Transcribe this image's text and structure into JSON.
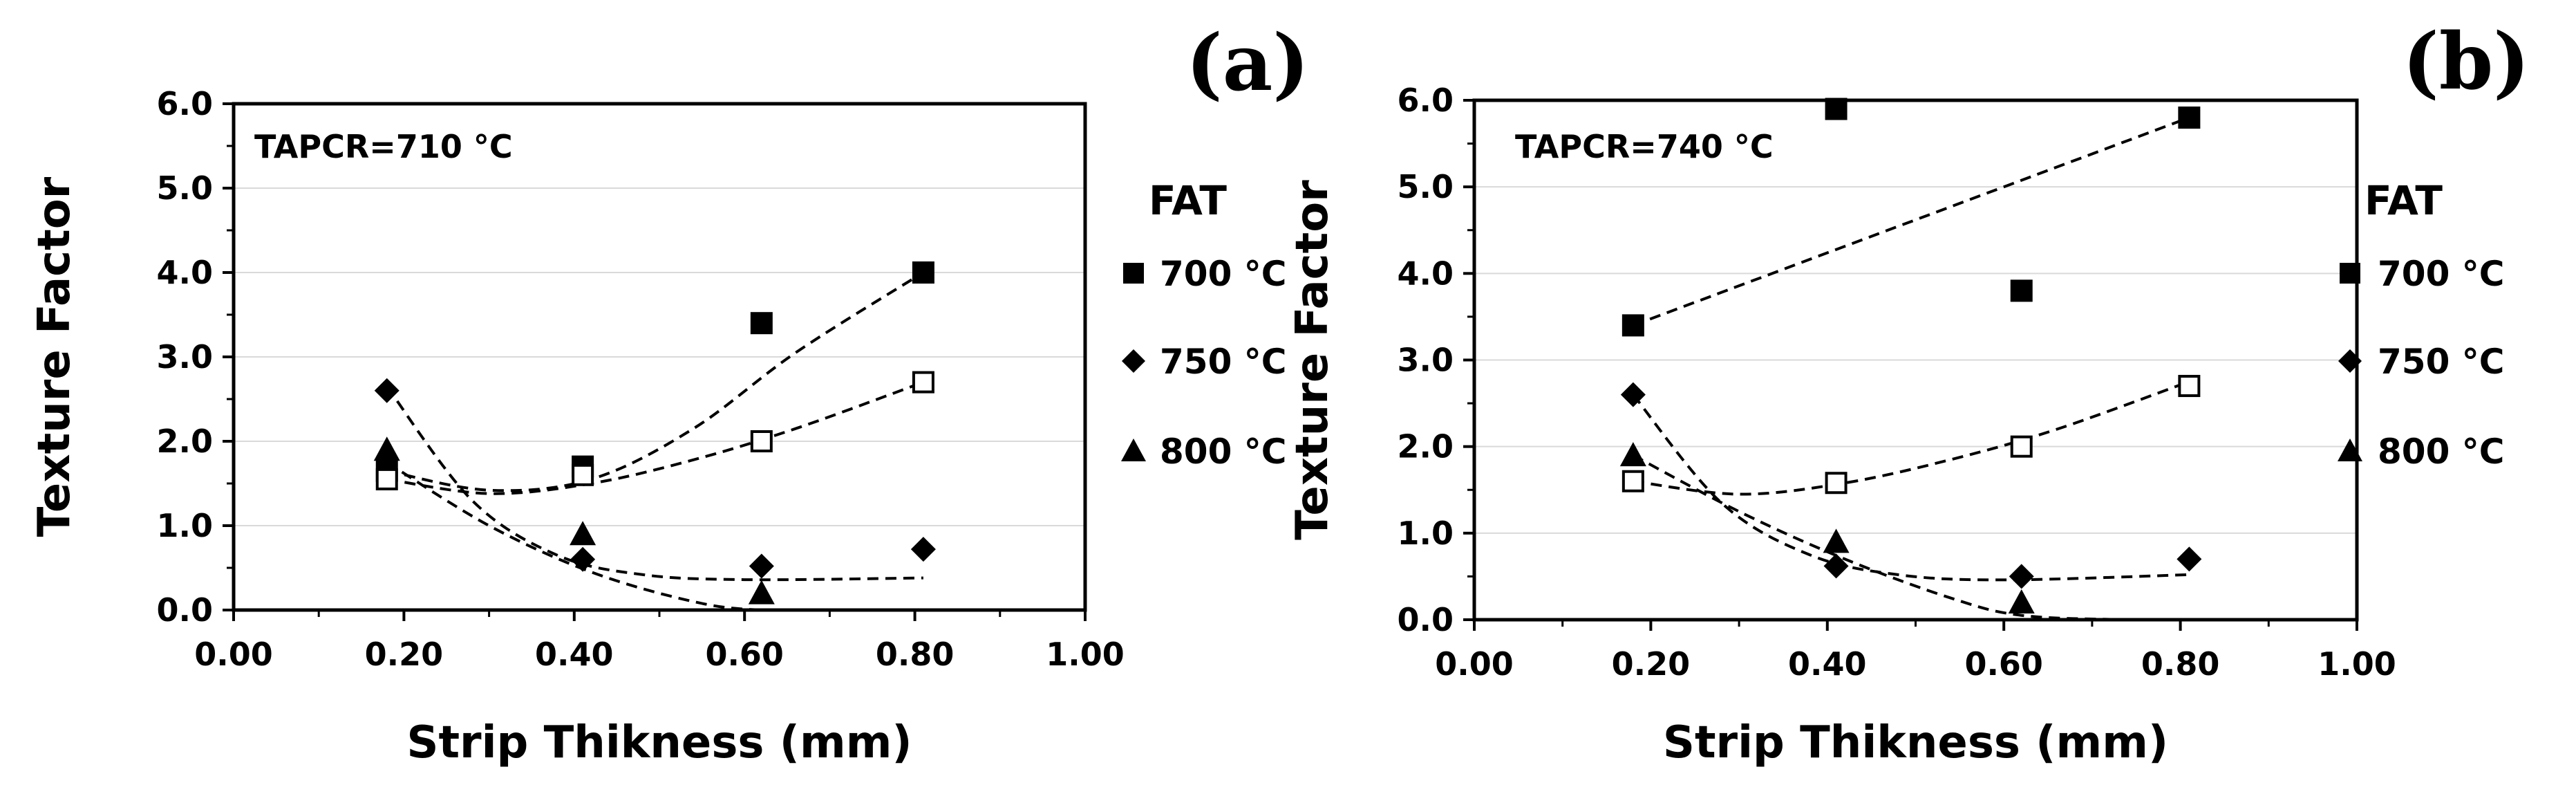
{
  "chart_data": [
    {
      "panel_label": "(a)",
      "type": "scatter",
      "annotation": "TAPCR=710 °C",
      "xlabel": "Strip Thikness (mm)",
      "ylabel": "Texture Factor",
      "xlim": [
        0.0,
        1.0
      ],
      "ylim": [
        0.0,
        6.0
      ],
      "x_ticks": [
        "0.00",
        "0.20",
        "0.40",
        "0.60",
        "0.80",
        "1.00"
      ],
      "y_ticks": [
        "0.0",
        "1.0",
        "2.0",
        "3.0",
        "4.0",
        "5.0",
        "6.0"
      ],
      "legend_title": "FAT",
      "legend": [
        "700 °C",
        "750 °C",
        "800 °C"
      ],
      "series": [
        {
          "name": "700 °C",
          "marker": "square",
          "x": [
            0.18,
            0.41,
            0.62,
            0.81
          ],
          "y": [
            1.65,
            1.7,
            3.4,
            4.0
          ],
          "trend_x": [
            0.18,
            0.3,
            0.42,
            0.54,
            0.66,
            0.81
          ],
          "trend_y": [
            1.65,
            1.42,
            1.55,
            2.15,
            3.05,
            4.0
          ]
        },
        {
          "name": "750 °C",
          "marker": "diamond",
          "x": [
            0.18,
            0.41,
            0.62,
            0.81
          ],
          "y": [
            2.6,
            0.6,
            0.52,
            0.72
          ],
          "trend_x": [
            0.18,
            0.28,
            0.38,
            0.48,
            0.6,
            0.81
          ],
          "trend_y": [
            2.65,
            1.3,
            0.65,
            0.42,
            0.36,
            0.38
          ]
        },
        {
          "name": "800 °C",
          "marker": "triangle",
          "x": [
            0.18,
            0.41,
            0.62
          ],
          "y": [
            1.9,
            0.9,
            0.2
          ],
          "trend_x": [
            0.18,
            0.3,
            0.42,
            0.54,
            0.62,
            0.74
          ],
          "trend_y": [
            1.75,
            1.0,
            0.45,
            0.1,
            0.0,
            0.0
          ]
        },
        {
          "name": "",
          "marker": "open-square",
          "x": [
            0.18,
            0.41,
            0.62,
            0.81
          ],
          "y": [
            1.55,
            1.6,
            2.0,
            2.7
          ],
          "trend_x": [
            0.18,
            0.3,
            0.42,
            0.54,
            0.66,
            0.81
          ],
          "trend_y": [
            1.55,
            1.38,
            1.5,
            1.78,
            2.15,
            2.7
          ]
        }
      ]
    },
    {
      "panel_label": "(b)",
      "type": "scatter",
      "annotation": "TAPCR=740 °C",
      "xlabel": "Strip Thikness (mm)",
      "ylabel": "Texture Factor",
      "xlim": [
        0.0,
        1.0
      ],
      "ylim": [
        0.0,
        6.0
      ],
      "x_ticks": [
        "0.00",
        "0.20",
        "0.40",
        "0.60",
        "0.80",
        "1.00"
      ],
      "y_ticks": [
        "0.0",
        "1.0",
        "2.0",
        "3.0",
        "4.0",
        "5.0",
        "6.0"
      ],
      "legend_title": "FAT",
      "legend": [
        "700 °C",
        "750 °C",
        "800 °C"
      ],
      "series": [
        {
          "name": "700 °C",
          "marker": "square",
          "x": [
            0.18,
            0.41,
            0.62,
            0.81
          ],
          "y": [
            3.4,
            5.9,
            3.8,
            5.8
          ],
          "trend_x": [
            0.18,
            0.81
          ],
          "trend_y": [
            3.4,
            5.8
          ]
        },
        {
          "name": "750 °C",
          "marker": "diamond",
          "x": [
            0.18,
            0.41,
            0.62,
            0.81
          ],
          "y": [
            2.6,
            0.62,
            0.5,
            0.7
          ],
          "trend_x": [
            0.18,
            0.28,
            0.38,
            0.48,
            0.6,
            0.81
          ],
          "trend_y": [
            2.6,
            1.35,
            0.75,
            0.52,
            0.46,
            0.52
          ]
        },
        {
          "name": "800 °C",
          "marker": "triangle",
          "x": [
            0.18,
            0.41,
            0.62
          ],
          "y": [
            1.9,
            0.9,
            0.2
          ],
          "trend_x": [
            0.18,
            0.3,
            0.42,
            0.54,
            0.62,
            0.74,
            0.81
          ],
          "trend_y": [
            1.9,
            1.25,
            0.7,
            0.25,
            0.05,
            0.0,
            0.0
          ]
        },
        {
          "name": "",
          "marker": "open-square",
          "x": [
            0.18,
            0.41,
            0.62,
            0.81
          ],
          "y": [
            1.6,
            1.58,
            2.0,
            2.7
          ],
          "trend_x": [
            0.18,
            0.3,
            0.42,
            0.54,
            0.66,
            0.81
          ],
          "trend_y": [
            1.6,
            1.45,
            1.58,
            1.85,
            2.2,
            2.75
          ]
        }
      ]
    }
  ]
}
